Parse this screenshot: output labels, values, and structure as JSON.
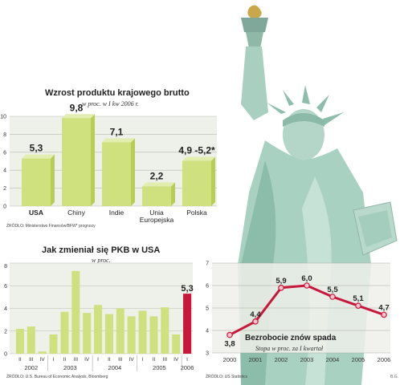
{
  "colors": {
    "bar_green": "#cfe07e",
    "bar_green_dark": "#b7cd55",
    "highlight_red": "#c8173a",
    "line_red": "#c8173a",
    "point_fill": "#f4c4cf",
    "panel_bg": "#eef0ea",
    "statue_green": "#9ec8b6"
  },
  "decor": {
    "statue": "statue-of-liberty-illustration"
  },
  "footer_initials": "B.G.",
  "charts": {
    "gdp": {
      "title": "Wzrost produktu krajowego brutto",
      "subtitle": "w proc. w I kw 2006 r.",
      "source": "ŹRÓDŁO: Ministerstwo Finansów/BFW* prognozy"
    },
    "usa": {
      "title": "Jak zmieniał się PKB w USA",
      "subtitle": "w proc.",
      "source": "ŹRÓDŁO: U.S. Bureau of Economic Analysis, Bloomberg"
    },
    "unemp": {
      "title": "Bezrobocie znów spada",
      "subtitle": "Stopa w proc. za I kwartał",
      "source": "ŹRÓDŁO: US Statistics"
    }
  },
  "chart_data": [
    {
      "type": "bar",
      "title": "Wzrost produktu krajowego brutto",
      "subtitle": "w proc. w I kw 2006 r.",
      "categories": [
        "USA",
        "Chiny",
        "Indie",
        "Unia Europejska",
        "Polska"
      ],
      "values": [
        5.3,
        9.8,
        7.1,
        2.2,
        5.05
      ],
      "data_labels": [
        "5,3",
        "9,8",
        "7,1",
        "2,2",
        "4,9 -5,2*"
      ],
      "ylim": [
        0,
        10
      ],
      "yticks": [
        "0",
        "2",
        "4",
        "6",
        "8",
        "10"
      ],
      "grid": true,
      "source": "ŹRÓDŁO: Ministerstwo Finansów/BFW* prognozy"
    },
    {
      "type": "bar",
      "title": "Jak zmieniał się PKB w USA",
      "subtitle": "w proc.",
      "categories": [
        "II",
        "III",
        "IV",
        "I",
        "II",
        "III",
        "IV",
        "I",
        "II",
        "III",
        "IV",
        "I",
        "II",
        "III",
        "IV",
        "I"
      ],
      "years": [
        "2002",
        "2003",
        "2004",
        "2005",
        "2006"
      ],
      "values": [
        2.2,
        2.4,
        0.2,
        1.7,
        3.7,
        7.3,
        3.6,
        4.3,
        3.5,
        4.0,
        3.3,
        3.8,
        3.3,
        4.1,
        1.7,
        5.3
      ],
      "highlight_label": "5,3",
      "ylim": [
        0,
        8
      ],
      "yticks": [
        "0",
        "2",
        "4",
        "6",
        "8"
      ],
      "grid": true,
      "source": "ŹRÓDŁO: U.S. Bureau of Economic Analysis, Bloomberg"
    },
    {
      "type": "line",
      "title": "Bezrobocie znów spada",
      "subtitle": "Stopa w proc. za I kwartał",
      "x": [
        "2000",
        "2001",
        "2002",
        "2003",
        "2004",
        "2005",
        "2006"
      ],
      "values": [
        3.8,
        4.4,
        5.9,
        6.0,
        5.5,
        5.1,
        4.7
      ],
      "data_labels": [
        "3,8",
        "4,4",
        "5,9",
        "6,0",
        "5,5",
        "5,1",
        "4,7"
      ],
      "ylim": [
        3,
        7
      ],
      "yticks": [
        "3",
        "4",
        "5",
        "6",
        "7"
      ],
      "grid": true,
      "source": "ŹRÓDŁO: US Statistics"
    }
  ]
}
